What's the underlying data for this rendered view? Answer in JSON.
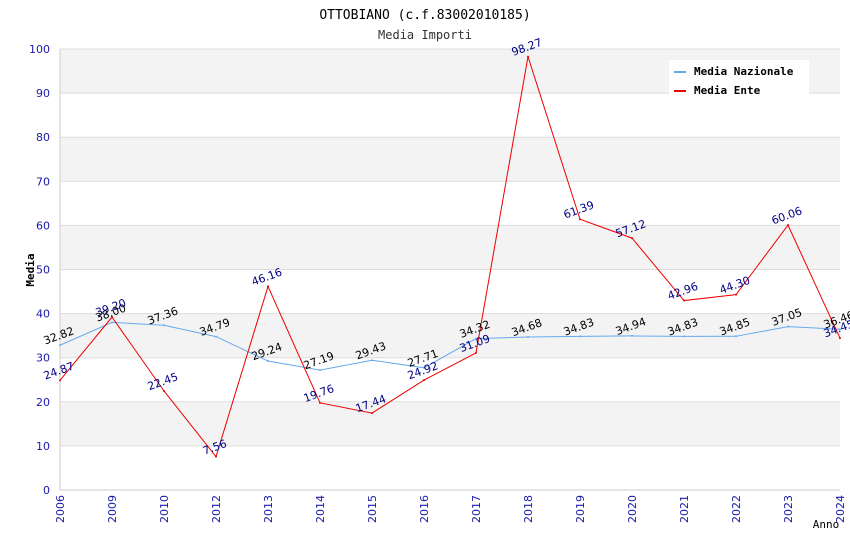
{
  "chart_data": {
    "type": "line",
    "title": "OTTOBIANO (c.f.83002010185)",
    "subtitle": "Media Importi",
    "xlabel": "Anno",
    "ylabel": "Media",
    "ylim": [
      0,
      100
    ],
    "yticks": [
      0,
      10,
      20,
      30,
      40,
      50,
      60,
      70,
      80,
      90,
      100
    ],
    "categories": [
      "2006",
      "2009",
      "2010",
      "2012",
      "2013",
      "2014",
      "2015",
      "2016",
      "2017",
      "2018",
      "2019",
      "2020",
      "2021",
      "2022",
      "2023",
      "2024"
    ],
    "legend_position": "top-right",
    "series": [
      {
        "name": "Media Nazionale",
        "color": "#66aaee",
        "label_color": "#000000",
        "values": [
          32.82,
          38.0,
          37.36,
          34.79,
          29.24,
          27.19,
          29.43,
          27.71,
          34.32,
          34.68,
          34.83,
          34.94,
          34.83,
          34.85,
          37.05,
          36.46
        ],
        "labels": [
          "32.82",
          "38.00",
          "37.36",
          "34.79",
          "29.24",
          "27.19",
          "29.43",
          "27.71",
          "34.32",
          "34.68",
          "34.83",
          "34.94",
          "34.83",
          "34.85",
          "37.05",
          "36.46"
        ]
      },
      {
        "name": "Media Ente",
        "color": "#ee0000",
        "label_color": "#000080",
        "values": [
          24.87,
          39.2,
          22.45,
          7.56,
          46.16,
          19.76,
          17.44,
          24.92,
          31.09,
          98.27,
          61.39,
          57.12,
          42.96,
          44.3,
          60.06,
          34.45
        ],
        "labels": [
          "24.87",
          "39.20",
          "22.45",
          "7.56",
          "46.16",
          "19.76",
          "17.44",
          "24.92",
          "31.09",
          "98.27",
          "61.39",
          "57.12",
          "42.96",
          "44.30",
          "60.06",
          "34.45"
        ]
      }
    ]
  }
}
